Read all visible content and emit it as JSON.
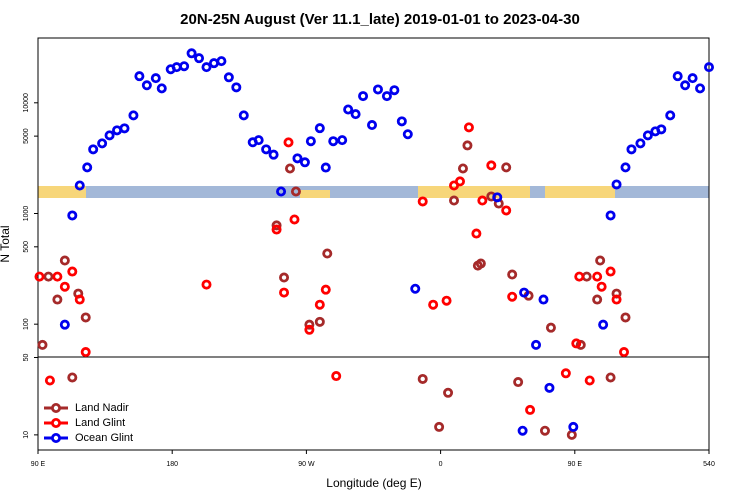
{
  "chart_data": {
    "type": "scatter",
    "title": "20N-25N August (Ver 11.1_late)   2019-01-01 to 2023-04-30",
    "x_label": "Longitude (deg E)",
    "y_label": "N Total",
    "log_scale": true,
    "xlim": [
      90,
      540
    ],
    "xticks": [
      {
        "value": 90,
        "label": "90 E"
      },
      180,
      {
        "value": 270,
        "label": "90 W"
      },
      {
        "value": 360,
        "label": "0"
      },
      {
        "value": 450,
        "label": "90 E"
      },
      540
    ],
    "ylim": [
      7.3,
      38500
    ],
    "yticks": [
      10,
      50,
      100,
      500,
      1000,
      5000,
      10000
    ],
    "legend": "bottom-left",
    "series": [
      {
        "name": "Land Nadir",
        "color": "#a52a2a",
        "x": [
          93,
          97,
          103,
          108,
          117,
          122,
          113,
          250,
          255,
          259,
          263,
          272,
          279,
          284,
          348,
          359,
          365,
          369,
          375,
          378,
          385,
          387,
          394,
          399,
          404,
          408,
          412,
          419,
          430,
          434,
          448,
          454,
          458,
          465,
          467,
          478,
          484,
          474
        ],
        "values": [
          65,
          269,
          167,
          376,
          189,
          115,
          33,
          780,
          264,
          2550,
          1580,
          99,
          105,
          435,
          32,
          11.8,
          24,
          1310,
          2550,
          4120,
          338,
          353,
          1425,
          1230,
          2610,
          281,
          30,
          181,
          10.9,
          93,
          10,
          65,
          269,
          167,
          376,
          189,
          115,
          33
        ]
      },
      {
        "name": "Land Glint",
        "color": "#ff0000",
        "x": [
          91,
          103,
          108,
          113,
          118,
          122,
          98,
          203,
          250,
          258,
          262,
          255,
          272,
          279,
          283,
          290,
          348,
          355,
          364,
          369,
          373,
          379,
          384,
          388,
          394,
          404,
          408,
          420,
          444,
          451,
          453,
          465,
          468,
          474,
          478,
          483,
          460
        ],
        "values": [
          269,
          269,
          218,
          299,
          167,
          56,
          31,
          228,
          716,
          4390,
          883,
          193,
          89,
          150,
          205,
          34,
          1285,
          150,
          163,
          1790,
          1950,
          6000,
          659,
          1310,
          2720,
          1065,
          177,
          16.8,
          36,
          67,
          269,
          269,
          218,
          299,
          167,
          56,
          31
        ]
      },
      {
        "name": "Ocean Glint",
        "color": "#0000ee",
        "x": [
          108,
          113,
          118,
          123,
          127,
          133,
          138,
          143,
          148,
          154,
          158,
          163,
          169,
          173,
          179,
          183,
          188,
          193,
          198,
          203,
          208,
          213,
          218,
          223,
          228,
          234,
          238,
          243,
          248,
          253,
          264,
          269,
          273,
          279,
          283,
          288,
          294,
          298,
          303,
          308,
          314,
          318,
          324,
          329,
          334,
          338,
          343,
          398,
          415,
          416,
          424,
          429,
          433,
          449,
          469,
          474,
          478,
          484,
          488,
          494,
          499,
          504,
          508,
          514,
          519,
          524,
          529,
          534,
          540
        ],
        "values": [
          99,
          960,
          1790,
          2610,
          3800,
          4300,
          5080,
          5640,
          5880,
          7700,
          17400,
          14400,
          16700,
          13500,
          20100,
          21000,
          21400,
          28000,
          25300,
          21000,
          22800,
          23800,
          17000,
          13800,
          7700,
          4400,
          4600,
          3800,
          3400,
          1580,
          3150,
          2900,
          4500,
          5900,
          2600,
          4500,
          4600,
          8700,
          7900,
          11500,
          6300,
          13200,
          11500,
          13000,
          6800,
          5200,
          209,
          1400,
          10.9,
          193,
          65,
          167,
          26.6,
          11.8,
          99,
          960,
          1830,
          2610,
          3800,
          4300,
          5080,
          5520,
          5760,
          7700,
          17400,
          14400,
          16700,
          13500,
          21000
        ]
      }
    ]
  }
}
